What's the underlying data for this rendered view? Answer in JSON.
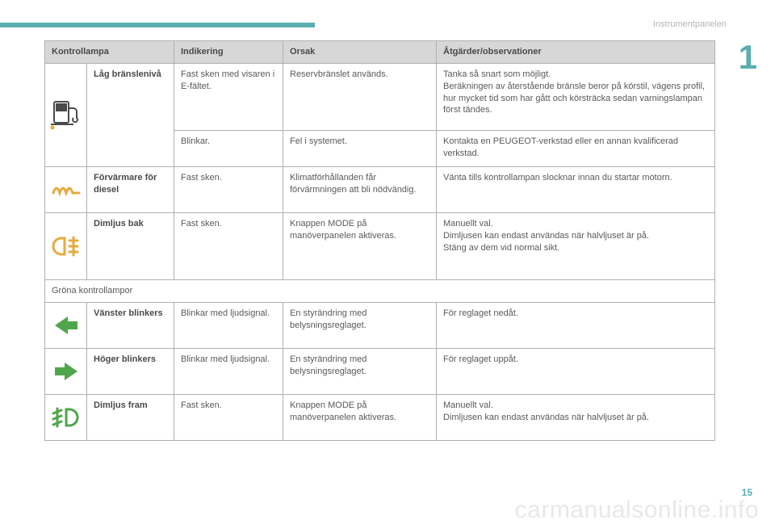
{
  "header": {
    "section_label": "Instrumentpanelen",
    "chapter_number": "1",
    "page_number": "15",
    "watermark": "carmanualsonline.info"
  },
  "colors": {
    "teal": "#5aaeb0",
    "border": "#b0b0b0",
    "header_bg": "#d7d7d7",
    "text": "#5a5a5a",
    "bold_text": "#4a4a4a",
    "amber": "#e6aa3c",
    "green": "#4fa64a"
  },
  "table": {
    "headers": {
      "lamp": "Kontrollampa",
      "ind": "Indikering",
      "cause": "Orsak",
      "action": "Åtgärder/observationer"
    },
    "rows": [
      {
        "icon": "fuel-pump",
        "icon_rowspan": 2,
        "lamp": "Låg bränslenivå",
        "lamp_rowspan": 2,
        "ind": "Fast sken med visaren i E-fältet.",
        "cause": "Reservbränslet används.",
        "action": "Tanka så snart som möjligt.\nBeräkningen av återstående bränsle beror på körstil, vägens profil, hur mycket tid som har gått och körsträcka sedan varningslampan först tändes.",
        "height": "h-tall"
      },
      {
        "ind": "Blinkar.",
        "cause": "Fel i systemet.",
        "action": "Kontakta en PEUGEOT-verkstad eller en annan kvalificerad verkstad.",
        "height": "h-sm"
      },
      {
        "icon": "coil",
        "lamp": "Förvärmare för diesel",
        "ind": "Fast sken.",
        "cause": "Klimatförhållanden får förvärmningen att bli nödvändig.",
        "action": "Vänta tills kontrollampan slocknar innan du startar motorn.",
        "height": "h-med"
      },
      {
        "icon": "rear-fog",
        "lamp": "Dimljus bak",
        "ind": "Fast sken.",
        "cause": "Knappen MODE på manöverpanelen aktiveras.",
        "action": "Manuellt val.\nDimljusen kan endast användas när halvljuset är på.\nStäng av dem vid normal sikt.",
        "height": "h-tall"
      }
    ],
    "subheader": "Gröna kontrollampor",
    "rows2": [
      {
        "icon": "left-arrow",
        "lamp": "Vänster blinkers",
        "ind": "Blinkar med ljudsignal.",
        "cause": "En styrändring med belysningsreglaget.",
        "action": "För reglaget nedåt.",
        "height": "h-med"
      },
      {
        "icon": "right-arrow",
        "lamp": "Höger blinkers",
        "ind": "Blinkar med ljudsignal.",
        "cause": "En styrändring med belysningsreglaget.",
        "action": "För reglaget uppåt.",
        "height": "h-med"
      },
      {
        "icon": "front-fog",
        "lamp": "Dimljus fram",
        "ind": "Fast sken.",
        "cause": "Knappen MODE på manöverpanelen aktiveras.",
        "action": "Manuellt val.\nDimljusen kan endast användas när halvljuset är på.",
        "height": "h-med"
      }
    ]
  }
}
